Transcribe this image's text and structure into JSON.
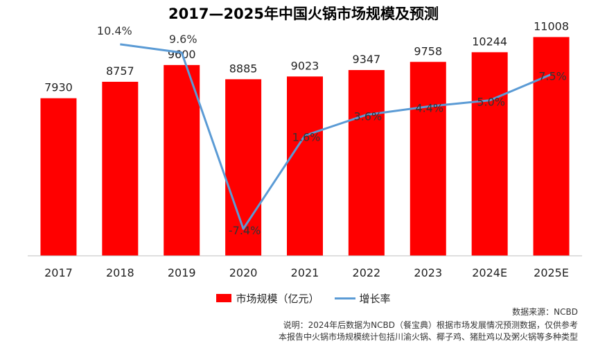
{
  "chart_data": {
    "type": "bar",
    "title": "2017—2025年中国火锅市场规模及预测",
    "categories": [
      "2017",
      "2018",
      "2019",
      "2020",
      "2021",
      "2022",
      "2023",
      "2024E",
      "2025E"
    ],
    "series": [
      {
        "name": "市场规模（亿元）",
        "type": "bar",
        "values": [
          7930,
          8757,
          9600,
          8885,
          9023,
          9347,
          9758,
          10244,
          11008
        ],
        "labels": [
          "7930",
          "8757",
          "9600",
          "8885",
          "9023",
          "9347",
          "9758",
          "10244",
          "11008"
        ],
        "color": "#ff0000"
      },
      {
        "name": "增长率",
        "type": "line",
        "values": [
          null,
          10.4,
          9.6,
          -7.4,
          1.6,
          3.6,
          4.4,
          5.0,
          7.5
        ],
        "labels": [
          "",
          "10.4%",
          "9.6%",
          "-7.4%",
          "1.6%",
          "3.6%",
          "4.4%",
          "5.0%",
          "7.5%"
        ],
        "color": "#5b9bd5"
      }
    ],
    "ylim": [
      0,
      12000
    ],
    "y2lim": [
      -10,
      13
    ],
    "grid": false,
    "legend_position": "bottom"
  },
  "footer": {
    "source": "数据来源：NCBD",
    "note1": "说明：2024年后数据为NCBD（餐宝典）根据市场发展情况预测数据，仅供参考",
    "note2": "本报告中火锅市场规模统计包括川渝火锅、椰子鸡、猪肚鸡以及粥火锅等多种类型"
  }
}
